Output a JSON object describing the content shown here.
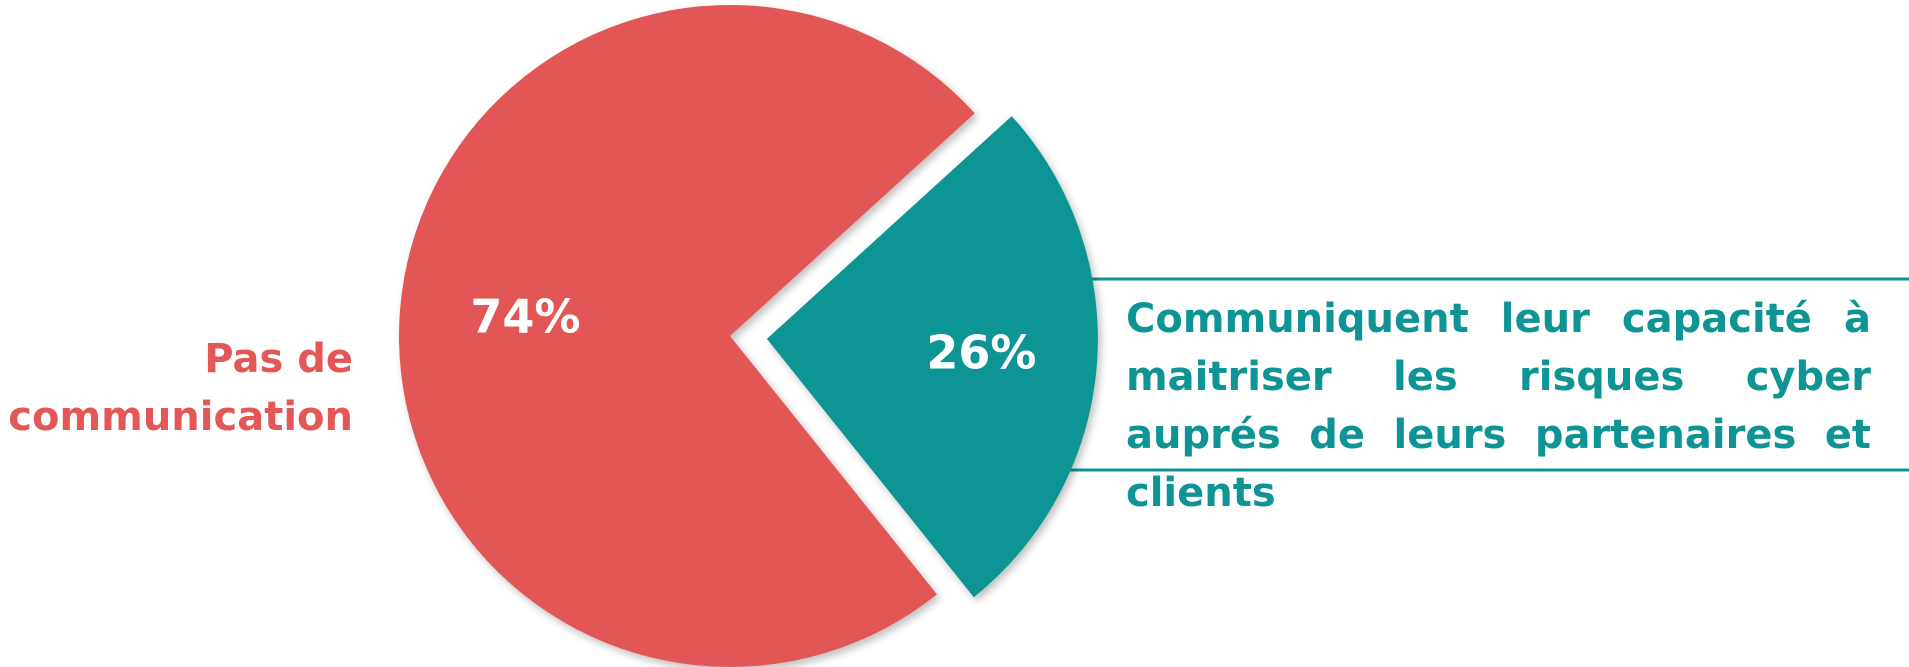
{
  "chart_data": {
    "type": "pie",
    "categories": [
      "Pas de communication",
      "Communiquent leur capacité à maitriser les risques cyber auprés de leurs partenaires et clients"
    ],
    "values": [
      74,
      26
    ],
    "value_labels": [
      "74%",
      "26%"
    ],
    "colors": [
      "#e35757",
      "#0e9494"
    ]
  }
}
